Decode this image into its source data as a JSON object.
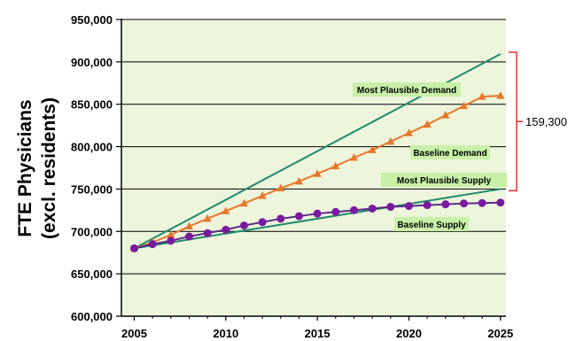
{
  "chart_data": {
    "type": "line",
    "ylabel": "FTE Physicians\n(excl. residents)",
    "x_ticks": [
      "2005",
      "2010",
      "2015",
      "2020",
      "2025"
    ],
    "y_ticks": [
      "600,000",
      "650,000",
      "700,000",
      "750,000",
      "800,000",
      "850,000",
      "900,000",
      "950,000"
    ],
    "xlim": [
      2004.3,
      2025.3
    ],
    "ylim": [
      600000,
      950000
    ],
    "grid": "horizontal",
    "plot_background": "#edf5dc",
    "bracket_label": "159,300",
    "bracket_range": [
      750000,
      909300
    ],
    "bracket_color": "#e03030",
    "series": [
      {
        "name": "Most Plausible Demand",
        "color": "#1e8a6a",
        "marker": "none",
        "x": [
          2005,
          2025
        ],
        "values": [
          680000,
          909300
        ]
      },
      {
        "name": "Baseline Demand",
        "color": "#e8772a",
        "marker": "triangle",
        "x": [
          2005,
          2006,
          2007,
          2008,
          2009,
          2010,
          2011,
          2012,
          2013,
          2014,
          2015,
          2016,
          2017,
          2018,
          2019,
          2020,
          2021,
          2022,
          2023,
          2024,
          2025
        ],
        "values": [
          680000,
          687000,
          696000,
          706000,
          715000,
          724000,
          733000,
          742000,
          751000,
          759000,
          768000,
          777000,
          787000,
          796000,
          806000,
          816000,
          826000,
          837000,
          848000,
          859000,
          860000
        ]
      },
      {
        "name": "Most Plausible Supply",
        "color": "#1e8a6a",
        "marker": "none",
        "x": [
          2005,
          2025
        ],
        "values": [
          680000,
          750000
        ]
      },
      {
        "name": "Baseline Supply",
        "color": "#5a2a8a",
        "marker_color": "#7a1aa0",
        "marker": "circle",
        "x": [
          2005,
          2006,
          2007,
          2008,
          2009,
          2010,
          2011,
          2012,
          2013,
          2014,
          2015,
          2016,
          2017,
          2018,
          2019,
          2020,
          2021,
          2022,
          2023,
          2024,
          2025
        ],
        "values": [
          680000,
          685000,
          689000,
          694000,
          698000,
          702000,
          707000,
          711000,
          715000,
          718000,
          721000,
          723000,
          725000,
          727000,
          729000,
          730000,
          731000,
          732000,
          733000,
          733500,
          734000
        ]
      }
    ],
    "annotations": [
      {
        "text": "Most Plausible Demand",
        "series": 0
      },
      {
        "text": "Baseline Demand",
        "series": 1
      },
      {
        "text": "Most Plausible Supply",
        "series": 2
      },
      {
        "text": "Baseline Supply",
        "series": 3
      }
    ]
  }
}
